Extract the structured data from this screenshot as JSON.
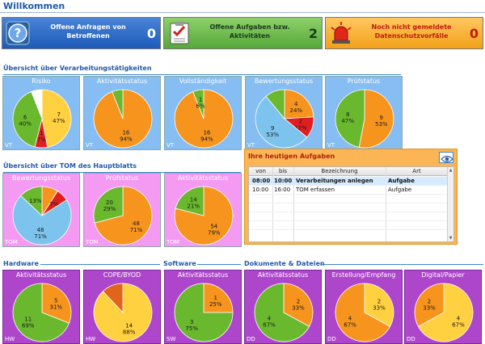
{
  "page": {
    "title": "Willkommen"
  },
  "banners": [
    {
      "text": "Offene Anfragen von Betroffenen",
      "count": "0",
      "icon": "question-icon"
    },
    {
      "text": "Offene Aufgaben bzw. Aktivitäten",
      "count": "2",
      "icon": "checklist-icon"
    },
    {
      "text": "Noch nicht gemeldete Datenschutzvorfälle",
      "count": "0",
      "icon": "alarm-light-icon"
    }
  ],
  "sections": {
    "vt": "Übersicht über Verarbeitungstätigkeiten",
    "tom": "Übersicht über TOM des Hauptblatts",
    "hw": "Hardware",
    "sw": "Software",
    "dd": "Dokumente & Dateien"
  },
  "chart_data": [
    {
      "type": "pie",
      "title": "Risiko",
      "tag": "VT",
      "slices": [
        {
          "label": "7",
          "pct": "47%",
          "value": 47,
          "color": "#ffd040"
        },
        {
          "label": "1",
          "pct": "7%",
          "value": 7,
          "color": "#e02020"
        },
        {
          "label": "6",
          "pct": "40%",
          "value": 40,
          "color": "#6ab82e"
        },
        {
          "label": "",
          "pct": "",
          "value": 6,
          "color": "#ffffff"
        }
      ]
    },
    {
      "type": "pie",
      "title": "Aktivitätsstatus",
      "tag": "VT",
      "slices": [
        {
          "label": "16",
          "pct": "94%",
          "value": 94,
          "color": "#f7941d"
        },
        {
          "label": "",
          "pct": "",
          "value": 6,
          "color": "#6ab82e"
        }
      ]
    },
    {
      "type": "pie",
      "title": "Vollständigkeit",
      "tag": "VT",
      "slices": [
        {
          "label": "16",
          "pct": "94%",
          "value": 94,
          "color": "#f7941d"
        },
        {
          "label": "1",
          "pct": "6%",
          "value": 6,
          "color": "#6ab82e"
        }
      ]
    },
    {
      "type": "pie",
      "title": "Bewertungsstatus",
      "tag": "VT",
      "slices": [
        {
          "label": "4",
          "pct": "24%",
          "value": 24,
          "color": "#f7941d"
        },
        {
          "label": "2",
          "pct": "12%",
          "value": 12,
          "color": "#e02020"
        },
        {
          "label": "9",
          "pct": "53%",
          "value": 53,
          "color": "#7cc4ee"
        },
        {
          "label": "",
          "pct": "",
          "value": 11,
          "color": "#6ab82e"
        }
      ]
    },
    {
      "type": "pie",
      "title": "Prüfstatus",
      "tag": "VT",
      "slices": [
        {
          "label": "9",
          "pct": "53%",
          "value": 53,
          "color": "#f7941d"
        },
        {
          "label": "8",
          "pct": "47%",
          "value": 47,
          "color": "#6ab82e"
        }
      ]
    },
    {
      "type": "pie",
      "title": "Bewertungsstatus",
      "tag": "TOM",
      "slices": [
        {
          "label": "",
          "pct": "",
          "value": 9,
          "color": "#f7941d"
        },
        {
          "label": "",
          "pct": "7%",
          "value": 7,
          "color": "#e02020"
        },
        {
          "label": "48",
          "pct": "71%",
          "value": 71,
          "color": "#7cc4ee"
        },
        {
          "label": "",
          "pct": "13%",
          "value": 13,
          "color": "#6ab82e"
        }
      ]
    },
    {
      "type": "pie",
      "title": "Prüfstatus",
      "tag": "TOM",
      "slices": [
        {
          "label": "48",
          "pct": "71%",
          "value": 71,
          "color": "#f7941d"
        },
        {
          "label": "20",
          "pct": "29%",
          "value": 29,
          "color": "#6ab82e"
        }
      ]
    },
    {
      "type": "pie",
      "title": "Aktivitätsstatus",
      "tag": "TOM",
      "slices": [
        {
          "label": "54",
          "pct": "79%",
          "value": 79,
          "color": "#f7941d"
        },
        {
          "label": "14",
          "pct": "21%",
          "value": 21,
          "color": "#6ab82e"
        }
      ]
    },
    {
      "type": "pie",
      "title": "Aktivitätsstatus",
      "tag": "HW",
      "slices": [
        {
          "label": "5",
          "pct": "31%",
          "value": 31,
          "color": "#f7941d"
        },
        {
          "label": "11",
          "pct": "69%",
          "value": 69,
          "color": "#6ab82e"
        }
      ]
    },
    {
      "type": "pie",
      "title": "COPE/BYOD",
      "tag": "HW",
      "slices": [
        {
          "label": "14",
          "pct": "88%",
          "value": 88,
          "color": "#ffd040"
        },
        {
          "label": "",
          "pct": "",
          "value": 12,
          "color": "#e0641a"
        }
      ]
    },
    {
      "type": "pie",
      "title": "Aktivitätsstatus",
      "tag": "SW",
      "slices": [
        {
          "label": "1",
          "pct": "25%",
          "value": 25,
          "color": "#f7941d"
        },
        {
          "label": "3",
          "pct": "75%",
          "value": 75,
          "color": "#6ab82e"
        }
      ]
    },
    {
      "type": "pie",
      "title": "Aktivitätsstatus",
      "tag": "DD",
      "slices": [
        {
          "label": "2",
          "pct": "33%",
          "value": 33,
          "color": "#f7941d"
        },
        {
          "label": "4",
          "pct": "67%",
          "value": 67,
          "color": "#6ab82e"
        }
      ]
    },
    {
      "type": "pie",
      "title": "Erstellung/Empfang",
      "tag": "DD",
      "slices": [
        {
          "label": "2",
          "pct": "33%",
          "value": 33,
          "color": "#ffd040"
        },
        {
          "label": "4",
          "pct": "67%",
          "value": 67,
          "color": "#f7941d"
        }
      ]
    },
    {
      "type": "pie",
      "title": "Digital/Papier",
      "tag": "DD",
      "slices": [
        {
          "label": "4",
          "pct": "67%",
          "value": 67,
          "color": "#ffd040"
        },
        {
          "label": "2",
          "pct": "33%",
          "value": 33,
          "color": "#f7941d"
        }
      ]
    }
  ],
  "tasks": {
    "title": "Ihre heutigen Aufgaben",
    "columns": [
      "von",
      "bis",
      "Bezeichnung",
      "Art"
    ],
    "rows": [
      {
        "von": "08:00",
        "bis": "10:00",
        "bez": "Verarbeitungen anlegen",
        "art": "Aufgabe",
        "selected": true
      },
      {
        "von": "10:00",
        "bis": "16:00",
        "bez": "TOM erfassen",
        "art": "Aufgabe",
        "selected": false
      }
    ]
  }
}
